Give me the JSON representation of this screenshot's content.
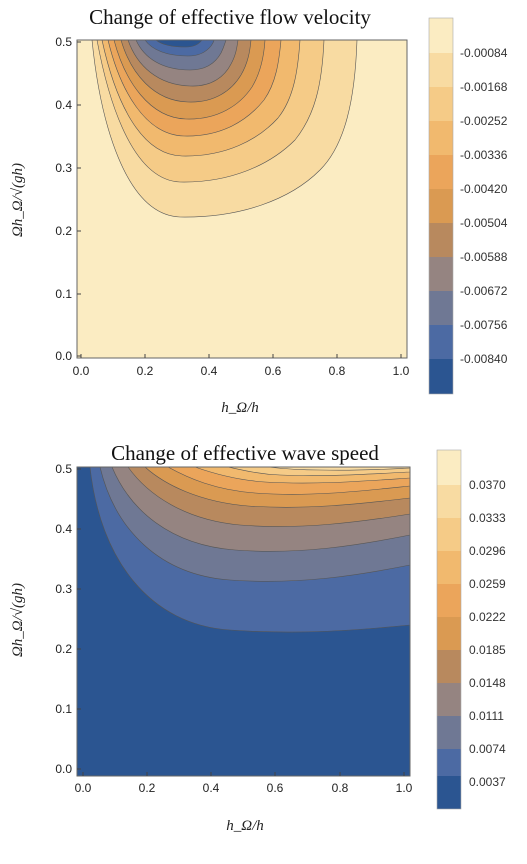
{
  "chart_data": [
    {
      "type": "contour",
      "title": "Change of effective flow velocity",
      "xlabel": "h_Ω/h",
      "ylabel": "Ωh_Ω/√(gh)",
      "xlim": [
        0.0,
        1.0
      ],
      "ylim": [
        0.0,
        0.5
      ],
      "x_ticks": [
        "0.0",
        "0.2",
        "0.4",
        "0.6",
        "0.8",
        "1.0"
      ],
      "y_ticks": [
        "0.0",
        "0.1",
        "0.2",
        "0.3",
        "0.4",
        "0.5"
      ],
      "legend_placement": "right",
      "legend_levels": [
        "-0.00084",
        "-0.00168",
        "-0.00252",
        "-0.00336",
        "-0.00420",
        "-0.00504",
        "-0.00588",
        "-0.00672",
        "-0.00756",
        "-0.00840"
      ],
      "colors": [
        "#2b5591",
        "#4c6aa3",
        "#6f7894",
        "#958481",
        "#b8895e",
        "#da9a52",
        "#eba55b",
        "#f1b96e",
        "#f5cb87",
        "#f8dba2",
        "#fbecc2"
      ]
    },
    {
      "type": "contour",
      "title": "Change of effective wave speed",
      "xlabel": "h_Ω/h",
      "ylabel": "Ωh_Ω/√(gh)",
      "xlim": [
        0.0,
        1.0
      ],
      "ylim": [
        0.0,
        0.5
      ],
      "x_ticks": [
        "0.0",
        "0.2",
        "0.4",
        "0.6",
        "0.8",
        "1.0"
      ],
      "y_ticks": [
        "0.0",
        "0.1",
        "0.2",
        "0.3",
        "0.4",
        "0.5"
      ],
      "legend_placement": "right",
      "legend_levels": [
        "0.0370",
        "0.0333",
        "0.0296",
        "0.0259",
        "0.0222",
        "0.0185",
        "0.0148",
        "0.0111",
        "0.0074",
        "0.0037"
      ],
      "colors": [
        "#2b5591",
        "#4c6aa3",
        "#6f7894",
        "#958481",
        "#b8895e",
        "#da9a52",
        "#eba55b",
        "#f1b96e",
        "#f5cb87",
        "#f8dba2",
        "#fbecc2"
      ]
    }
  ]
}
